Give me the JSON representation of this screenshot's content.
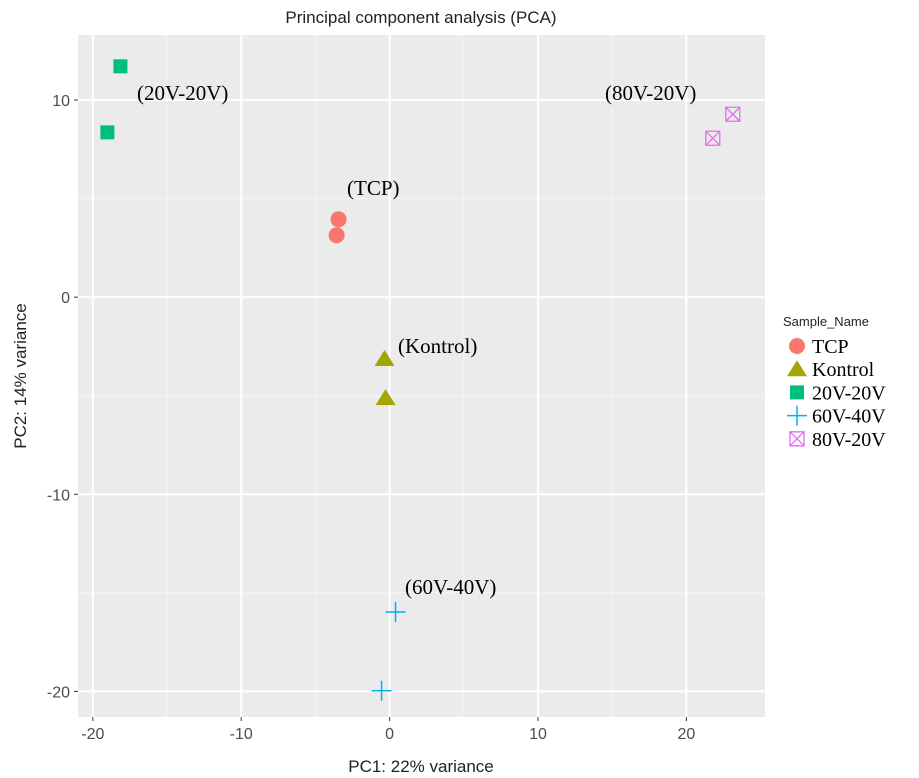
{
  "chart_data": {
    "type": "scatter",
    "title": "Principal component analysis (PCA)",
    "xlabel": "PC1: 22% variance",
    "ylabel": "PC2: 14% variance",
    "legend_title": "Sample_Name",
    "legend": "right",
    "grid": true,
    "xlim": [
      -21,
      25.3
    ],
    "xticks": [
      -20,
      -10,
      0,
      10,
      20
    ],
    "ylim": [
      -21.3,
      13.3
    ],
    "yticks": [
      -20,
      -10,
      0,
      10
    ],
    "series": [
      {
        "name": "TCP",
        "color": "#f8766d",
        "shape": "circle",
        "x": [
          -3.44,
          -3.57
        ],
        "values": [
          3.95,
          3.14
        ]
      },
      {
        "name": "Kontrol",
        "color": "#a3a500",
        "shape": "triangle",
        "x": [
          -0.34,
          -0.27
        ],
        "values": [
          -3.14,
          -5.12
        ]
      },
      {
        "name": "20V-20V",
        "color": "#00bf7d",
        "shape": "square",
        "x": [
          -18.14,
          -19.02
        ],
        "values": [
          11.71,
          8.36
        ]
      },
      {
        "name": "60V-40V",
        "color": "#00b0f6",
        "shape": "plus",
        "x": [
          0.4,
          -0.54
        ],
        "values": [
          -15.97,
          -19.97
        ]
      },
      {
        "name": "80V-20V",
        "color": "#e76bf3",
        "shape": "boxcross",
        "x": [
          23.13,
          21.78
        ],
        "values": [
          9.28,
          8.06
        ]
      }
    ],
    "annotations": [
      "(20V-20V)",
      "(80V-20V)",
      "(TCP)",
      "(Kontrol)",
      "(60V-40V)"
    ]
  }
}
